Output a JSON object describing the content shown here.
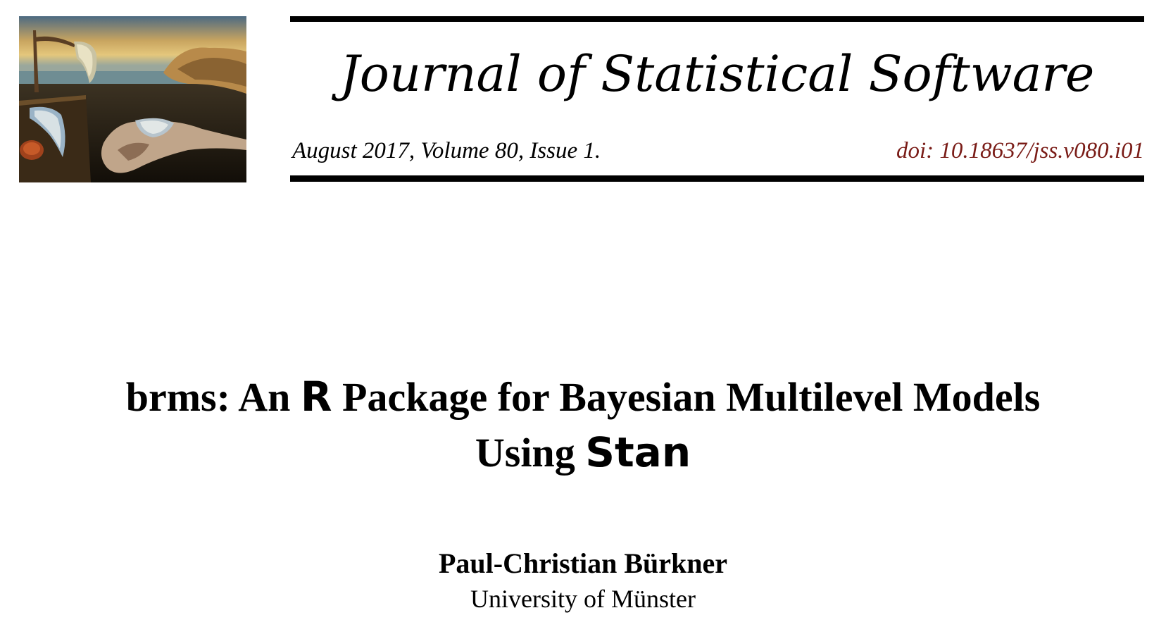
{
  "header": {
    "journal_name": "Journal of Statistical Software",
    "issue_info": "August 2017, Volume 80, Issue 1.",
    "doi": "doi: 10.18637/jss.v080.i01",
    "doi_color": "#7a1c17",
    "cover_image": "surreal-melting-clocks-painting"
  },
  "paper": {
    "title_line1_part1": "brms:  An ",
    "title_line1_r": "R",
    "title_line1_part2": " Package for Bayesian Multilevel Models",
    "title_line2_part1": "Using ",
    "title_line2_stan": "Stan",
    "author": "Paul-Christian Bürkner",
    "affiliation": "University of Münster"
  }
}
